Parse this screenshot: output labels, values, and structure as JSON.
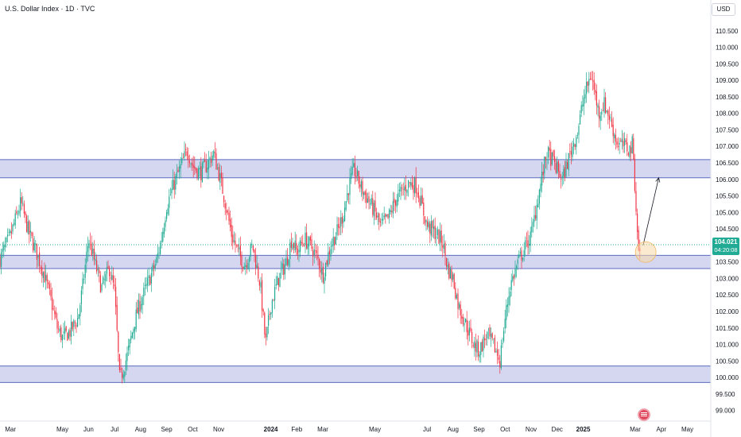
{
  "header": {
    "title": "U.S. Dollar Index · 1D · TVC",
    "currency": "USD"
  },
  "price_tag": {
    "price": "104.021",
    "countdown": "04:20:08"
  },
  "colors": {
    "up": "#22ab94",
    "down": "#f23645",
    "zone_fill": "#c5cae9",
    "zone_line": "#5c6bc0",
    "axis_text": "#131722",
    "current_line": "#22ab94"
  },
  "chart_data": {
    "type": "candlestick",
    "title": "U.S. Dollar Index · 1D · TVC",
    "ylim": [
      98.8,
      111.0
    ],
    "y_ticks": [
      "99.000",
      "99.500",
      "100.000",
      "100.500",
      "101.000",
      "101.500",
      "102.000",
      "102.500",
      "103.000",
      "103.500",
      "104.000",
      "104.500",
      "105.000",
      "105.500",
      "106.000",
      "106.500",
      "107.000",
      "107.500",
      "108.000",
      "108.500",
      "109.000",
      "109.500",
      "110.000",
      "110.500"
    ],
    "x_ticks": [
      "Mar",
      "May",
      "Jun",
      "Jul",
      "Aug",
      "Sep",
      "Oct",
      "Nov",
      "2024",
      "Feb",
      "Mar",
      "May",
      "Jul",
      "Aug",
      "Sep",
      "Oct",
      "Nov",
      "Dec",
      "2025",
      "Mar",
      "Apr",
      "May"
    ],
    "x_tick_pos": [
      0.0,
      2.0,
      3.0,
      4.0,
      5.0,
      6.0,
      7.0,
      8.0,
      10.0,
      11.0,
      12.0,
      14.0,
      16.0,
      17.0,
      18.0,
      19.0,
      20.0,
      21.0,
      22.0,
      24.0,
      25.0,
      26.0
    ],
    "x_range": [
      -0.4,
      26.9
    ],
    "closes": [
      {
        "t": -0.4,
        "v": 103.6
      },
      {
        "t": 0.0,
        "v": 104.3
      },
      {
        "t": 0.4,
        "v": 105.3
      },
      {
        "t": 0.7,
        "v": 104.4
      },
      {
        "t": 1.0,
        "v": 103.8
      },
      {
        "t": 1.3,
        "v": 103.1
      },
      {
        "t": 1.6,
        "v": 102.2
      },
      {
        "t": 1.8,
        "v": 101.5
      },
      {
        "t": 2.0,
        "v": 101.2
      },
      {
        "t": 2.3,
        "v": 101.4
      },
      {
        "t": 2.6,
        "v": 101.8
      },
      {
        "t": 2.8,
        "v": 102.9
      },
      {
        "t": 3.0,
        "v": 104.2
      },
      {
        "t": 3.2,
        "v": 103.6
      },
      {
        "t": 3.5,
        "v": 102.7
      },
      {
        "t": 3.8,
        "v": 103.3
      },
      {
        "t": 4.0,
        "v": 102.6
      },
      {
        "t": 4.2,
        "v": 99.9
      },
      {
        "t": 4.5,
        "v": 100.7
      },
      {
        "t": 4.8,
        "v": 101.8
      },
      {
        "t": 5.0,
        "v": 102.3
      },
      {
        "t": 5.3,
        "v": 102.9
      },
      {
        "t": 5.6,
        "v": 103.5
      },
      {
        "t": 5.8,
        "v": 104.2
      },
      {
        "t": 6.0,
        "v": 105.2
      },
      {
        "t": 6.3,
        "v": 105.9
      },
      {
        "t": 6.6,
        "v": 106.5
      },
      {
        "t": 6.8,
        "v": 106.9
      },
      {
        "t": 7.0,
        "v": 106.4
      },
      {
        "t": 7.3,
        "v": 106.2
      },
      {
        "t": 7.6,
        "v": 106.5
      },
      {
        "t": 7.8,
        "v": 106.8
      },
      {
        "t": 8.0,
        "v": 106.2
      },
      {
        "t": 8.2,
        "v": 105.5
      },
      {
        "t": 8.5,
        "v": 104.3
      },
      {
        "t": 8.8,
        "v": 103.7
      },
      {
        "t": 9.0,
        "v": 103.4
      },
      {
        "t": 9.3,
        "v": 104.0
      },
      {
        "t": 9.6,
        "v": 102.8
      },
      {
        "t": 9.8,
        "v": 101.0
      },
      {
        "t": 10.0,
        "v": 102.2
      },
      {
        "t": 10.3,
        "v": 103.0
      },
      {
        "t": 10.6,
        "v": 103.5
      },
      {
        "t": 10.8,
        "v": 104.2
      },
      {
        "t": 11.0,
        "v": 103.8
      },
      {
        "t": 11.3,
        "v": 104.2
      },
      {
        "t": 11.6,
        "v": 103.9
      },
      {
        "t": 11.8,
        "v": 103.6
      },
      {
        "t": 12.0,
        "v": 103.1
      },
      {
        "t": 12.3,
        "v": 104.0
      },
      {
        "t": 12.6,
        "v": 104.5
      },
      {
        "t": 12.8,
        "v": 105.0
      },
      {
        "t": 13.0,
        "v": 105.8
      },
      {
        "t": 13.2,
        "v": 106.3
      },
      {
        "t": 13.5,
        "v": 105.7
      },
      {
        "t": 13.8,
        "v": 105.3
      },
      {
        "t": 14.0,
        "v": 105.0
      },
      {
        "t": 14.2,
        "v": 104.6
      },
      {
        "t": 14.5,
        "v": 104.8
      },
      {
        "t": 14.8,
        "v": 105.4
      },
      {
        "t": 15.0,
        "v": 105.6
      },
      {
        "t": 15.3,
        "v": 105.9
      },
      {
        "t": 15.6,
        "v": 105.8
      },
      {
        "t": 15.8,
        "v": 105.2
      },
      {
        "t": 16.0,
        "v": 104.6
      },
      {
        "t": 16.3,
        "v": 104.4
      },
      {
        "t": 16.6,
        "v": 104.1
      },
      {
        "t": 16.8,
        "v": 103.3
      },
      {
        "t": 17.0,
        "v": 103.0
      },
      {
        "t": 17.2,
        "v": 102.2
      },
      {
        "t": 17.5,
        "v": 101.6
      },
      {
        "t": 17.8,
        "v": 101.0
      },
      {
        "t": 18.0,
        "v": 100.8
      },
      {
        "t": 18.3,
        "v": 101.3
      },
      {
        "t": 18.6,
        "v": 100.9
      },
      {
        "t": 18.8,
        "v": 100.5
      },
      {
        "t": 19.0,
        "v": 101.8
      },
      {
        "t": 19.2,
        "v": 102.8
      },
      {
        "t": 19.5,
        "v": 103.5
      },
      {
        "t": 19.8,
        "v": 104.0
      },
      {
        "t": 20.0,
        "v": 104.3
      },
      {
        "t": 20.3,
        "v": 105.6
      },
      {
        "t": 20.6,
        "v": 106.8
      },
      {
        "t": 20.8,
        "v": 106.6
      },
      {
        "t": 21.0,
        "v": 106.3
      },
      {
        "t": 21.2,
        "v": 106.0
      },
      {
        "t": 21.5,
        "v": 106.8
      },
      {
        "t": 21.8,
        "v": 107.5
      },
      {
        "t": 22.0,
        "v": 108.4
      },
      {
        "t": 22.3,
        "v": 109.2
      },
      {
        "t": 22.6,
        "v": 108.0
      },
      {
        "t": 22.8,
        "v": 108.3
      },
      {
        "t": 23.0,
        "v": 107.9
      },
      {
        "t": 23.3,
        "v": 107.1
      },
      {
        "t": 23.6,
        "v": 107.0
      },
      {
        "t": 23.8,
        "v": 106.9
      },
      {
        "t": 23.9,
        "v": 107.1
      },
      {
        "t": 24.0,
        "v": 105.6
      },
      {
        "t": 24.1,
        "v": 104.0
      },
      {
        "t": 24.2,
        "v": 103.7
      }
    ],
    "current_price": 104.021,
    "zones": [
      {
        "from": 106.05,
        "to": 106.6
      },
      {
        "from": 103.3,
        "to": 103.7
      },
      {
        "from": 99.85,
        "to": 100.35
      }
    ],
    "projection": {
      "from_t": 24.3,
      "from_v": 104.0,
      "to_t": 24.9,
      "to_v": 106.05
    },
    "highlight_circle": {
      "t": 24.4,
      "v": 103.8
    }
  }
}
